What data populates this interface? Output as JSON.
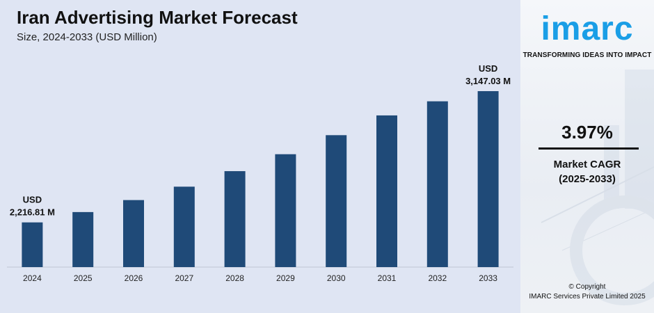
{
  "title": "Iran Advertising Market Forecast",
  "subtitle": "Size, 2024-2033 (USD Million)",
  "brand": {
    "logo_text": "imarc",
    "tagline": "TRANSFORMING IDEAS INTO IMPACT",
    "accent_color": "#1a9ee6"
  },
  "cagr": {
    "value": "3.97%",
    "label_line1": "Market CAGR",
    "label_line2": "(2025-2033)"
  },
  "copyright": {
    "line1": "© Copyright",
    "line2": "IMARC Services Private Limited 2025"
  },
  "chart_data": {
    "type": "bar",
    "title": "Iran Advertising Market Forecast",
    "subtitle": "Size, 2024-2033 (USD Million)",
    "categories": [
      "2024",
      "2025",
      "2026",
      "2027",
      "2028",
      "2029",
      "2030",
      "2031",
      "2032",
      "2033"
    ],
    "values": [
      2216.81,
      2290,
      2375,
      2470,
      2580,
      2700,
      2835,
      2975,
      3075,
      3147.03
    ],
    "bar_color": "#1f4a78",
    "ylim": [
      1900,
      3300
    ],
    "grid": false,
    "data_labels": [
      {
        "index": 0,
        "line1": "USD",
        "line2": "2,216.81 M"
      },
      {
        "index": 9,
        "line1": "USD",
        "line2": "3,147.03 M"
      }
    ]
  }
}
